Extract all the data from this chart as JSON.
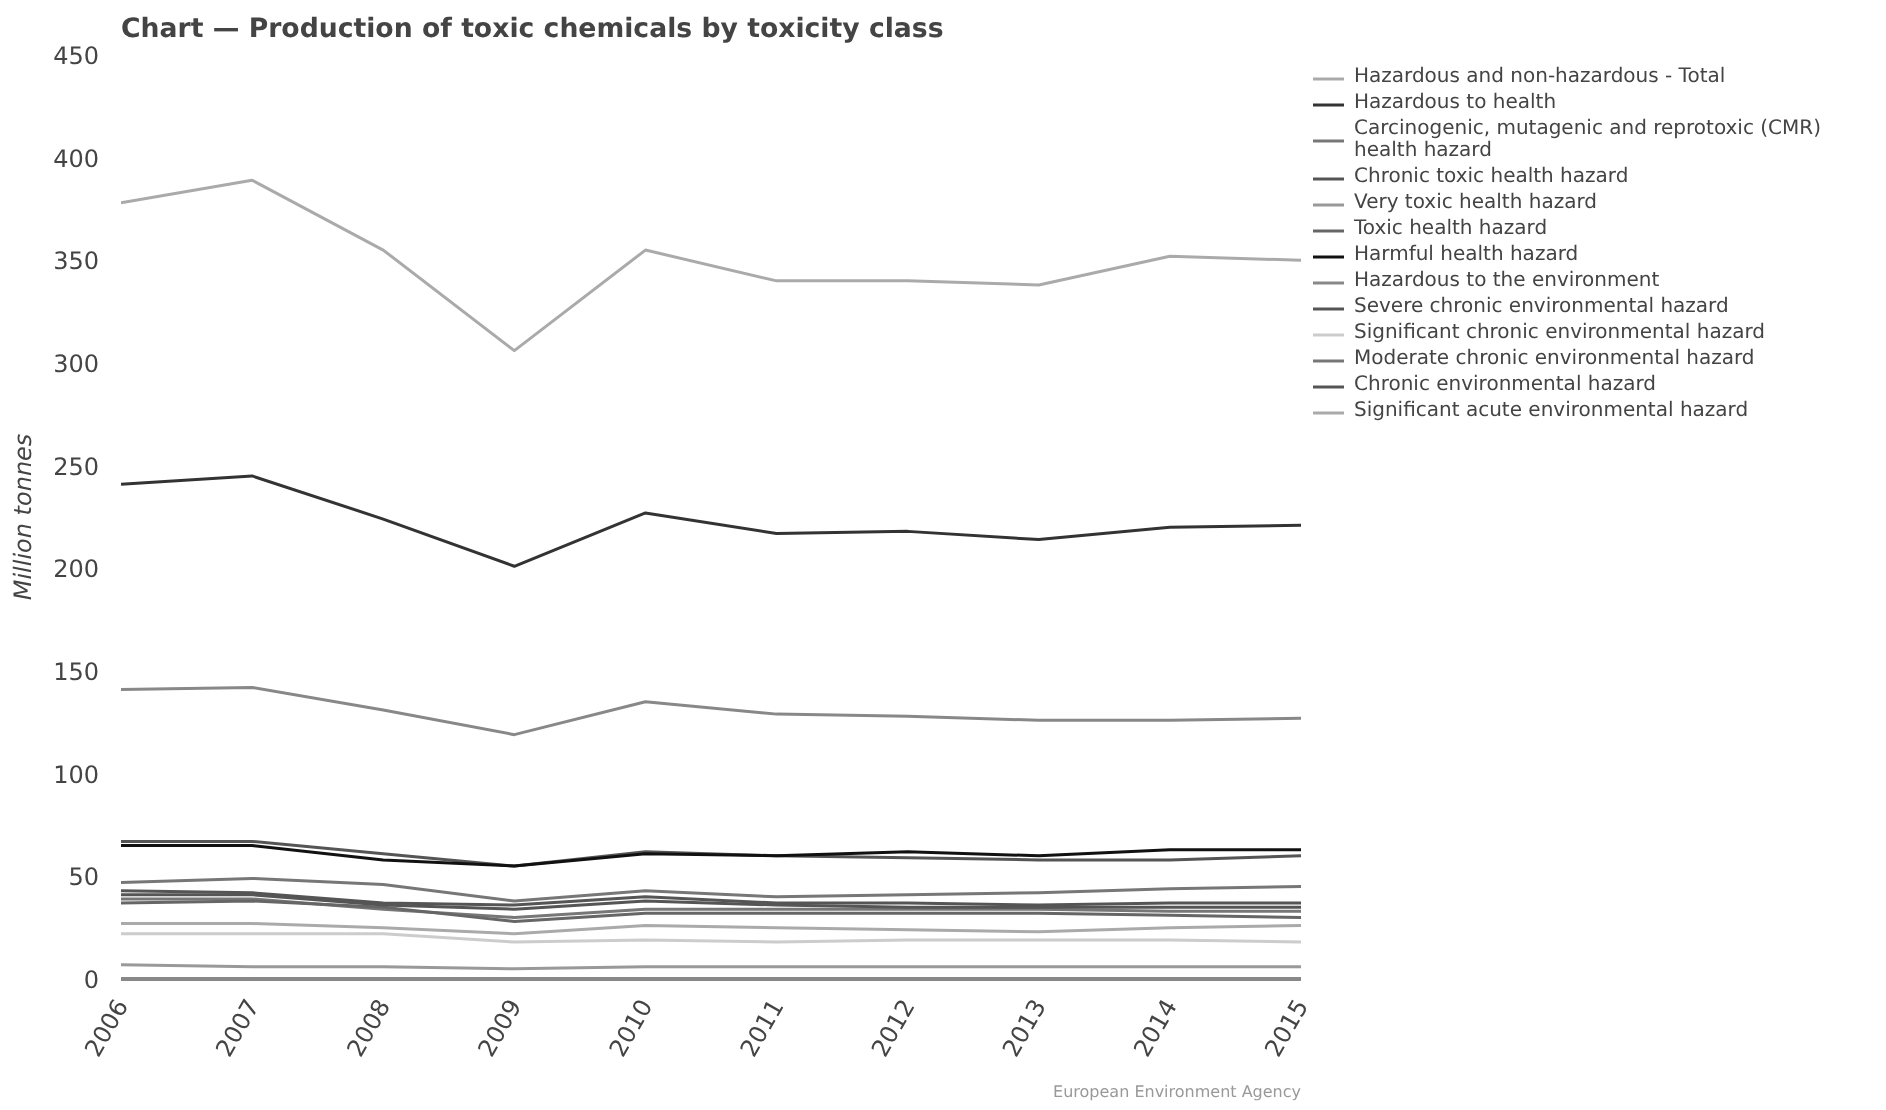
{
  "chart_data": {
    "type": "line",
    "title": "Chart — Production of toxic chemicals by toxicity class",
    "ylabel": "Million tonnes",
    "x": [
      2006,
      2007,
      2008,
      2009,
      2010,
      2011,
      2012,
      2013,
      2014,
      2015
    ],
    "xlim": [
      2006,
      2015
    ],
    "xticks": [
      2006,
      2007,
      2008,
      2009,
      2010,
      2011,
      2012,
      2013,
      2014,
      2015
    ],
    "ylim": [
      0,
      450
    ],
    "yticks": [
      0,
      50,
      100,
      150,
      200,
      250,
      300,
      350,
      400,
      450
    ],
    "grid": false,
    "legend": "top right",
    "marker": "none",
    "line_style": "solid",
    "annotations": [
      "European Environment Agency"
    ],
    "series": [
      {
        "name": "Hazardous and non-hazardous - Total",
        "color": "#aaaaaa",
        "values": [
          378,
          389,
          355,
          306,
          355,
          340,
          340,
          338,
          352,
          350
        ]
      },
      {
        "name": "Hazardous to health",
        "color": "#333333",
        "values": [
          241,
          245,
          224,
          201,
          227,
          217,
          218,
          214,
          220,
          221
        ]
      },
      {
        "name": "Carcinogenic, mutagenic and reprotoxic (CMR) health hazard",
        "color": "#777777",
        "values": [
          39,
          39,
          34,
          30,
          34,
          34,
          34,
          34,
          33,
          33
        ]
      },
      {
        "name": "Chronic toxic health hazard",
        "color": "#555555",
        "values": [
          67,
          67,
          61,
          55,
          62,
          60,
          59,
          58,
          58,
          60
        ]
      },
      {
        "name": "Very toxic health hazard",
        "color": "#999999",
        "values": [
          7,
          6,
          6,
          5,
          6,
          6,
          6,
          6,
          6,
          6
        ]
      },
      {
        "name": "Toxic health hazard",
        "color": "#666666",
        "values": [
          37,
          38,
          35,
          28,
          32,
          32,
          32,
          32,
          31,
          30
        ]
      },
      {
        "name": "Harmful health hazard",
        "color": "#111111",
        "values": [
          65,
          65,
          58,
          55,
          61,
          60,
          62,
          60,
          63,
          63
        ]
      },
      {
        "name": "Hazardous to the environment",
        "color": "#888888",
        "values": [
          141,
          142,
          131,
          119,
          135,
          129,
          128,
          126,
          126,
          127
        ]
      },
      {
        "name": "Severe chronic environmental hazard",
        "color": "#555555",
        "values": [
          43,
          42,
          37,
          36,
          40,
          37,
          37,
          36,
          37,
          37
        ]
      },
      {
        "name": "Significant chronic environmental hazard",
        "color": "#cccccc",
        "values": [
          22,
          22,
          22,
          18,
          19,
          18,
          19,
          19,
          19,
          18
        ]
      },
      {
        "name": "Moderate chronic environmental hazard",
        "color": "#777777",
        "values": [
          47,
          49,
          46,
          38,
          43,
          40,
          41,
          42,
          44,
          45
        ]
      },
      {
        "name": "Chronic environmental hazard",
        "color": "#555555",
        "values": [
          41,
          41,
          36,
          34,
          38,
          36,
          35,
          35,
          35,
          35
        ]
      },
      {
        "name": "Significant acute environmental hazard",
        "color": "#aaaaaa",
        "values": [
          27,
          27,
          25,
          22,
          26,
          25,
          24,
          23,
          25,
          26
        ]
      }
    ]
  }
}
